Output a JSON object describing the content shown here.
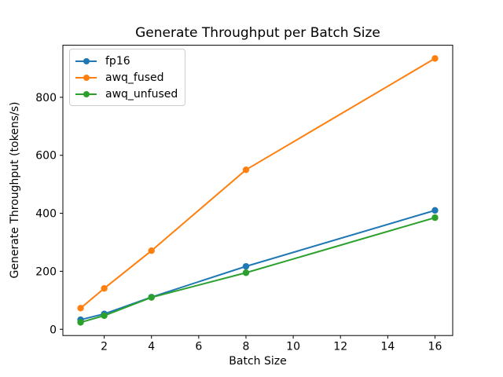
{
  "figure": {
    "background": "#ffffff",
    "text_color": "#000000",
    "axis_color": "#000000",
    "legend_border_color": "#cccccc"
  },
  "chart_data": {
    "type": "line",
    "title": "Generate Throughput per Batch Size",
    "xlabel": "Batch Size",
    "ylabel": "Generate Throughput (tokens/s)",
    "x": [
      1,
      2,
      4,
      8,
      16
    ],
    "series": [
      {
        "name": "fp16",
        "color": "#1f77b4",
        "values": [
          33,
          53,
          111,
          217,
          410
        ]
      },
      {
        "name": "awq_fused",
        "color": "#ff7f0e",
        "values": [
          73,
          141,
          271,
          550,
          934
        ]
      },
      {
        "name": "awq_unfused",
        "color": "#2ca02c",
        "values": [
          24,
          47,
          110,
          195,
          385
        ]
      }
    ],
    "xticks": [
      2,
      4,
      6,
      8,
      10,
      12,
      14,
      16
    ],
    "yticks": [
      0,
      200,
      400,
      600,
      800
    ],
    "xlim": [
      0.25,
      16.75
    ],
    "ylim": [
      -21.5,
      979.5
    ],
    "grid": false,
    "legend_position": "upper left",
    "marker": "circle"
  }
}
